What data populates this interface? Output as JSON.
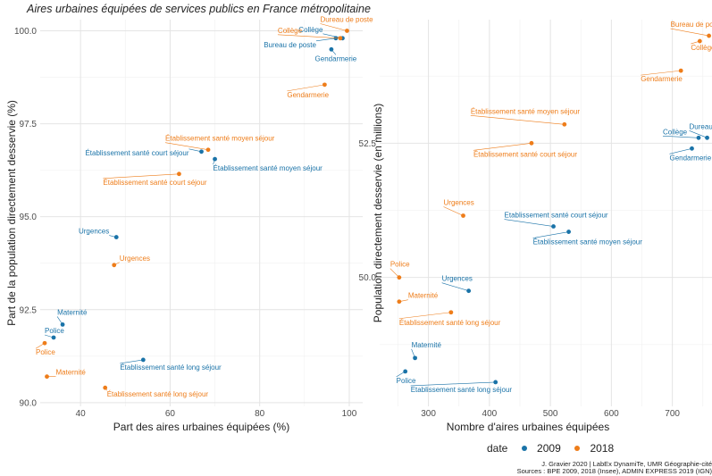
{
  "title": "Aires urbaines équipées de services publics en France métropolitaine",
  "legend": {
    "title": "date",
    "entries": [
      {
        "label": "2009",
        "color": "#1a73a8"
      },
      {
        "label": "2018",
        "color": "#ee7d1a"
      }
    ]
  },
  "caption": [
    "J. Gravier 2020 | LabEx DynamiTe, UMR Géographie-cité",
    "Sources : BPE 2009, 2018 (Insee), ADMIN EXPRESS 2019 (IGN)"
  ],
  "chart_data": [
    {
      "type": "scatter",
      "xlabel": "Part des aires urbaines équipées (%)",
      "ylabel": "Part de la population directement desservie (%)",
      "xlim": [
        31,
        103
      ],
      "ylim": [
        89.9,
        100.3
      ],
      "x_ticks": [
        "40",
        "60",
        "80",
        "100"
      ],
      "y_ticks": [
        "90.0",
        "92.5",
        "95.0",
        "97.5",
        "100.0"
      ],
      "x_tick_values": [
        40,
        60,
        80,
        100
      ],
      "y_tick_values": [
        90.0,
        92.5,
        95.0,
        97.5,
        100.0
      ],
      "series": [
        {
          "name": "2009",
          "points": [
            {
              "label": "Collège",
              "x": 98.5,
              "y": 99.8
            },
            {
              "label": "Bureau de poste",
              "x": 97,
              "y": 99.8
            },
            {
              "label": "Gendarmerie",
              "x": 96,
              "y": 99.5
            },
            {
              "label": "Établissement santé court séjour",
              "x": 67,
              "y": 96.75
            },
            {
              "label": "Établissement santé moyen séjour",
              "x": 70,
              "y": 96.55
            },
            {
              "label": "Urgences",
              "x": 48,
              "y": 94.45
            },
            {
              "label": "Maternité",
              "x": 36,
              "y": 92.1
            },
            {
              "label": "Police",
              "x": 34,
              "y": 91.75
            },
            {
              "label": "Établissement santé long séjour",
              "x": 54,
              "y": 91.15
            }
          ]
        },
        {
          "name": "2018",
          "points": [
            {
              "label": "Dureau de poste",
              "x": 99.5,
              "y": 100.0
            },
            {
              "label": "Collège",
              "x": 98,
              "y": 99.8
            },
            {
              "label": "Gendarmerie",
              "x": 94.5,
              "y": 98.55
            },
            {
              "label": "Établissement santé moyen séjour",
              "x": 68.5,
              "y": 96.8
            },
            {
              "label": "Établissement santé court séjour",
              "x": 62,
              "y": 96.15
            },
            {
              "label": "Urgences",
              "x": 47.5,
              "y": 93.7
            },
            {
              "label": "Police",
              "x": 32,
              "y": 91.6
            },
            {
              "label": "Maternité",
              "x": 32.5,
              "y": 90.7
            },
            {
              "label": "Établissement santé long séjour",
              "x": 45.5,
              "y": 90.4
            }
          ]
        }
      ]
    },
    {
      "type": "scatter",
      "xlabel": "Nombre d'aires urbaines équipées",
      "ylabel": "Population directement desservie (en millions)",
      "xlim": [
        220,
        765
      ],
      "ylim": [
        47.6,
        54.8
      ],
      "x_ticks": [
        "300",
        "400",
        "500",
        "600",
        "700"
      ],
      "y_ticks": [
        "50.0",
        "52.5"
      ],
      "x_tick_values": [
        300,
        400,
        500,
        600,
        700
      ],
      "y_tick_values": [
        50.0,
        52.5
      ],
      "series": [
        {
          "name": "2009",
          "points": [
            {
              "label": "Dureau de poste",
              "x": 757,
              "y": 52.6
            },
            {
              "label": "Collège",
              "x": 743,
              "y": 52.6
            },
            {
              "label": "Gendarmerie",
              "x": 732,
              "y": 52.4
            },
            {
              "label": "Etablissement santé court séjour",
              "x": 505,
              "y": 50.95
            },
            {
              "label": "Établissement santé moyen séjour",
              "x": 530,
              "y": 50.85
            },
            {
              "label": "Urgences",
              "x": 366,
              "y": 49.75
            },
            {
              "label": "Maternité",
              "x": 278,
              "y": 48.5
            },
            {
              "label": "Police",
              "x": 262,
              "y": 48.25
            },
            {
              "label": "Etablissement santé long séjour",
              "x": 410,
              "y": 48.05
            }
          ]
        },
        {
          "name": "2018",
          "points": [
            {
              "label": "Bureau de poste",
              "x": 760,
              "y": 54.5
            },
            {
              "label": "Collège",
              "x": 745,
              "y": 54.4
            },
            {
              "label": "Gendarmerie",
              "x": 714,
              "y": 53.85
            },
            {
              "label": "Établissement santé moyen séjour",
              "x": 523,
              "y": 52.85
            },
            {
              "label": "Établissement santé court séjour",
              "x": 469,
              "y": 52.5
            },
            {
              "label": "Urgences",
              "x": 357,
              "y": 51.15
            },
            {
              "label": "Police",
              "x": 252,
              "y": 50.0
            },
            {
              "label": "Maternité",
              "x": 252,
              "y": 49.55
            },
            {
              "label": "Établissement santé long séjour",
              "x": 337,
              "y": 49.35
            }
          ]
        }
      ]
    }
  ]
}
